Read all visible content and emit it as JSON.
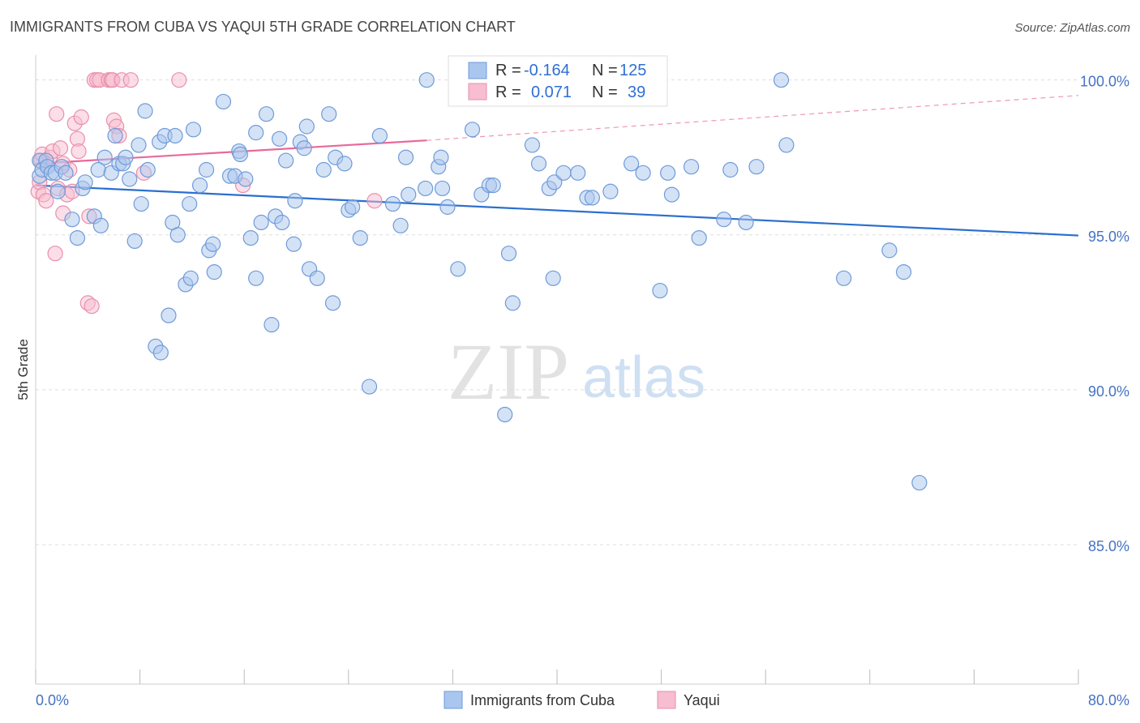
{
  "title": "IMMIGRANTS FROM CUBA VS YAQUI 5TH GRADE CORRELATION CHART",
  "source": "Source: ZipAtlas.com",
  "watermark": {
    "zip": "ZIP",
    "atlas": "atlas"
  },
  "colors": {
    "cuba_fill": "#a9c6ee",
    "cuba_stroke": "#6f9bd8",
    "cuba_line": "#2a6fcf",
    "yaqui_fill": "#f7bdd0",
    "yaqui_stroke": "#ea8fad",
    "yaqui_line": "#e8699a",
    "tick_text": "#4472c4",
    "grid": "#dddddd"
  },
  "legend_box": {
    "rows": [
      {
        "r_label": "R =",
        "r_value": "-0.164",
        "n_label": "N =",
        "n_value": "125"
      },
      {
        "r_label": "R =",
        "r_value": "0.071",
        "n_label": "N =",
        "n_value": "39"
      }
    ]
  },
  "bottom_legend": [
    "Immigrants from Cuba",
    "Yaqui"
  ],
  "chart_data": {
    "type": "scatter",
    "xlabel": "",
    "ylabel": "5th Grade",
    "xlim": [
      0,
      80
    ],
    "ylim": [
      80.5,
      100.75
    ],
    "x_tick_labels": [
      "0.0%",
      "80.0%"
    ],
    "y_ticks": [
      100,
      95,
      90,
      85
    ],
    "y_tick_labels": [
      "100.0%",
      "95.0%",
      "90.0%",
      "85.0%"
    ],
    "grid": true,
    "series": [
      {
        "name": "Immigrants from Cuba",
        "trend": {
          "x": [
            0,
            80
          ],
          "y": [
            96.6,
            94.98
          ]
        },
        "points": [
          [
            0.3,
            97.4
          ],
          [
            0.3,
            96.9
          ],
          [
            0.5,
            97.1
          ],
          [
            0.8,
            97.4
          ],
          [
            0.9,
            97.2
          ],
          [
            1.2,
            97.0
          ],
          [
            1.5,
            97.0
          ],
          [
            1.7,
            96.4
          ],
          [
            2.0,
            97.2
          ],
          [
            2.3,
            97.0
          ],
          [
            2.8,
            95.5
          ],
          [
            3.2,
            94.9
          ],
          [
            3.6,
            96.5
          ],
          [
            3.8,
            96.7
          ],
          [
            4.5,
            95.6
          ],
          [
            4.8,
            97.1
          ],
          [
            5.0,
            95.3
          ],
          [
            5.3,
            97.5
          ],
          [
            5.8,
            97.0
          ],
          [
            6.1,
            98.2
          ],
          [
            6.4,
            97.3
          ],
          [
            6.7,
            97.3
          ],
          [
            6.9,
            97.5
          ],
          [
            7.2,
            96.8
          ],
          [
            7.6,
            94.8
          ],
          [
            7.9,
            97.9
          ],
          [
            8.1,
            96.0
          ],
          [
            8.4,
            99.0
          ],
          [
            8.6,
            97.1
          ],
          [
            9.2,
            91.4
          ],
          [
            9.5,
            98.0
          ],
          [
            9.6,
            91.2
          ],
          [
            9.9,
            98.2
          ],
          [
            10.2,
            92.4
          ],
          [
            10.5,
            95.4
          ],
          [
            10.7,
            98.2
          ],
          [
            10.9,
            95.0
          ],
          [
            11.5,
            93.4
          ],
          [
            11.8,
            96.0
          ],
          [
            11.9,
            93.6
          ],
          [
            12.1,
            98.4
          ],
          [
            12.6,
            96.6
          ],
          [
            13.1,
            97.1
          ],
          [
            13.3,
            94.5
          ],
          [
            13.6,
            94.7
          ],
          [
            13.7,
            93.8
          ],
          [
            14.4,
            99.3
          ],
          [
            14.9,
            96.9
          ],
          [
            15.3,
            96.9
          ],
          [
            15.6,
            97.7
          ],
          [
            15.7,
            97.6
          ],
          [
            16.1,
            96.8
          ],
          [
            16.5,
            94.9
          ],
          [
            16.9,
            93.6
          ],
          [
            16.9,
            98.3
          ],
          [
            17.3,
            95.4
          ],
          [
            17.7,
            98.9
          ],
          [
            18.1,
            92.1
          ],
          [
            18.4,
            95.6
          ],
          [
            18.7,
            98.1
          ],
          [
            18.9,
            95.4
          ],
          [
            19.2,
            97.4
          ],
          [
            19.8,
            94.7
          ],
          [
            19.9,
            96.1
          ],
          [
            20.3,
            98.0
          ],
          [
            20.6,
            97.8
          ],
          [
            20.8,
            98.5
          ],
          [
            21.0,
            93.9
          ],
          [
            21.6,
            93.6
          ],
          [
            22.1,
            97.1
          ],
          [
            22.5,
            98.9
          ],
          [
            22.8,
            92.8
          ],
          [
            23.0,
            97.5
          ],
          [
            23.7,
            97.3
          ],
          [
            24.0,
            95.8
          ],
          [
            24.3,
            95.9
          ],
          [
            24.9,
            94.9
          ],
          [
            25.6,
            90.1
          ],
          [
            26.4,
            98.2
          ],
          [
            27.4,
            96.0
          ],
          [
            28.0,
            95.3
          ],
          [
            28.4,
            97.5
          ],
          [
            28.6,
            96.3
          ],
          [
            29.9,
            96.5
          ],
          [
            30.0,
            100.0
          ],
          [
            30.9,
            97.2
          ],
          [
            31.1,
            97.5
          ],
          [
            31.2,
            96.5
          ],
          [
            31.6,
            95.9
          ],
          [
            32.4,
            93.9
          ],
          [
            33.5,
            98.4
          ],
          [
            34.2,
            96.3
          ],
          [
            34.8,
            96.6
          ],
          [
            35.1,
            96.6
          ],
          [
            36.0,
            89.2
          ],
          [
            36.3,
            94.4
          ],
          [
            36.6,
            92.8
          ],
          [
            38.1,
            97.9
          ],
          [
            38.6,
            97.3
          ],
          [
            39.4,
            96.5
          ],
          [
            39.7,
            93.6
          ],
          [
            39.8,
            96.7
          ],
          [
            40.5,
            97.0
          ],
          [
            41.6,
            97.0
          ],
          [
            42.3,
            96.2
          ],
          [
            42.7,
            96.2
          ],
          [
            44.1,
            96.4
          ],
          [
            45.7,
            97.3
          ],
          [
            46.6,
            97.0
          ],
          [
            47.9,
            93.2
          ],
          [
            48.5,
            97.0
          ],
          [
            48.8,
            96.3
          ],
          [
            50.3,
            97.2
          ],
          [
            50.9,
            94.9
          ],
          [
            52.8,
            95.5
          ],
          [
            53.3,
            97.1
          ],
          [
            54.5,
            95.4
          ],
          [
            55.3,
            97.2
          ],
          [
            57.2,
            100.0
          ],
          [
            57.6,
            97.9
          ],
          [
            62.0,
            93.6
          ],
          [
            65.5,
            94.5
          ],
          [
            66.6,
            93.8
          ],
          [
            67.8,
            87.0
          ]
        ]
      },
      {
        "name": "Yaqui",
        "trend": {
          "x": [
            0,
            30.0,
            80
          ],
          "y": [
            97.3,
            98.05,
            99.5
          ]
        },
        "points": [
          [
            0.2,
            96.4
          ],
          [
            0.3,
            96.7
          ],
          [
            0.4,
            97.4
          ],
          [
            0.5,
            97.6
          ],
          [
            0.6,
            96.3
          ],
          [
            0.8,
            96.1
          ],
          [
            0.9,
            97.2
          ],
          [
            1.1,
            97.5
          ],
          [
            1.3,
            97.7
          ],
          [
            1.5,
            94.4
          ],
          [
            1.6,
            98.9
          ],
          [
            1.7,
            96.5
          ],
          [
            1.9,
            97.8
          ],
          [
            2.1,
            97.3
          ],
          [
            2.1,
            95.7
          ],
          [
            2.4,
            96.3
          ],
          [
            2.6,
            97.1
          ],
          [
            2.8,
            96.4
          ],
          [
            3.0,
            98.6
          ],
          [
            3.2,
            98.1
          ],
          [
            3.3,
            97.7
          ],
          [
            3.5,
            98.8
          ],
          [
            4.0,
            92.8
          ],
          [
            4.1,
            95.6
          ],
          [
            4.3,
            92.7
          ],
          [
            4.5,
            100.0
          ],
          [
            4.7,
            100.0
          ],
          [
            4.9,
            100.0
          ],
          [
            5.6,
            100.0
          ],
          [
            5.8,
            100.0
          ],
          [
            5.9,
            100.0
          ],
          [
            6.0,
            98.7
          ],
          [
            6.2,
            98.5
          ],
          [
            6.4,
            98.2
          ],
          [
            6.6,
            100.0
          ],
          [
            7.3,
            100.0
          ],
          [
            8.3,
            97.0
          ],
          [
            11.0,
            100.0
          ],
          [
            15.9,
            96.6
          ],
          [
            26.0,
            96.1
          ]
        ]
      }
    ]
  }
}
